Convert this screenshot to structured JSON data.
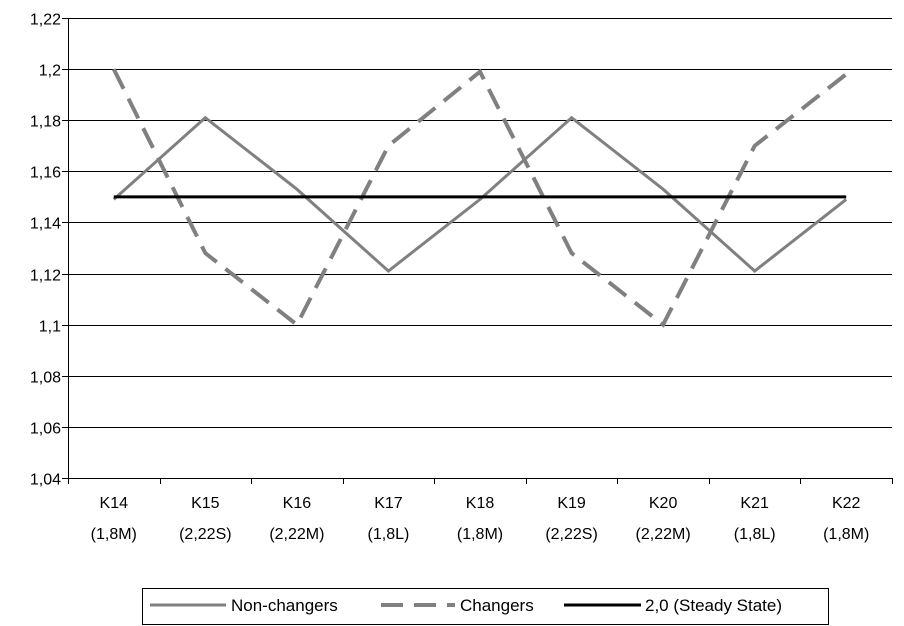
{
  "chart_data": {
    "type": "line",
    "categories": [
      [
        "K14",
        "(1,8M)"
      ],
      [
        "K15",
        "(2,22S)"
      ],
      [
        "K16",
        "(2,22M)"
      ],
      [
        "K17",
        "(1,8L)"
      ],
      [
        "K18",
        "(1,8M)"
      ],
      [
        "K19",
        "(2,22S)"
      ],
      [
        "K20",
        "(2,22M)"
      ],
      [
        "K21",
        "(1,8L)"
      ],
      [
        "K22",
        "(1,8M)"
      ]
    ],
    "ylim": [
      1.04,
      1.22
    ],
    "ytick_labels": [
      "1,04",
      "1,06",
      "1,08",
      "1,1",
      "1,12",
      "1,14",
      "1,16",
      "1,18",
      "1,2",
      "1,22"
    ],
    "grid": true,
    "legend_position": "bottom",
    "series": [
      {
        "name": "Non-changers",
        "color": "#808080",
        "style": "solid",
        "values": [
          1.149,
          1.181,
          1.153,
          1.121,
          1.149,
          1.181,
          1.153,
          1.121,
          1.149
        ]
      },
      {
        "name": "Changers",
        "color": "#808080",
        "style": "dashed",
        "values": [
          1.2,
          1.128,
          1.1,
          1.17,
          1.199,
          1.128,
          1.1,
          1.17,
          1.198
        ]
      },
      {
        "name": "2,0 (Steady State)",
        "color": "#000000",
        "style": "solid",
        "values": [
          1.15,
          1.15,
          1.15,
          1.15,
          1.15,
          1.15,
          1.15,
          1.15,
          1.15
        ]
      }
    ]
  }
}
